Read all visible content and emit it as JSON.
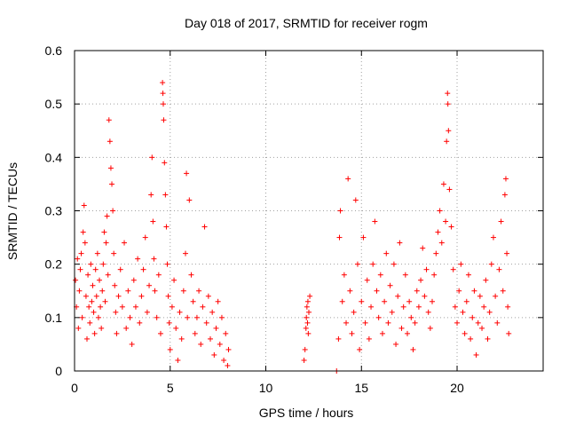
{
  "chart_data": {
    "type": "scatter",
    "title": "Day 018 of 2017, SRMTID for receiver rogm",
    "xlabel": "GPS time / hours",
    "ylabel": "SRMTID / TECUs",
    "xlim": [
      0,
      24.5
    ],
    "ylim": [
      0,
      0.6
    ],
    "xticks": [
      0,
      5,
      10,
      15,
      20
    ],
    "xtick_labels": [
      "0",
      "5",
      "10",
      "15",
      "20"
    ],
    "yticks": [
      0,
      0.1,
      0.2,
      0.3,
      0.4,
      0.5,
      0.6
    ],
    "ytick_labels": [
      "0",
      "0.1",
      "0.2",
      "0.3",
      "0.4",
      "0.5",
      "0.6"
    ],
    "grid": true,
    "marker": "+",
    "marker_color": "#ff0000",
    "series": [
      {
        "values_note": "",
        "points": [
          [
            0.05,
            0.17
          ],
          [
            0.1,
            0.12
          ],
          [
            0.15,
            0.21
          ],
          [
            0.2,
            0.08
          ],
          [
            0.25,
            0.15
          ],
          [
            0.3,
            0.19
          ],
          [
            0.35,
            0.22
          ],
          [
            0.4,
            0.1
          ],
          [
            0.45,
            0.26
          ],
          [
            0.5,
            0.31
          ],
          [
            0.55,
            0.24
          ],
          [
            0.6,
            0.14
          ],
          [
            0.65,
            0.06
          ],
          [
            0.7,
            0.18
          ],
          [
            0.75,
            0.12
          ],
          [
            0.8,
            0.09
          ],
          [
            0.85,
            0.2
          ],
          [
            0.9,
            0.13
          ],
          [
            0.95,
            0.16
          ],
          [
            1.0,
            0.11
          ],
          [
            1.05,
            0.07
          ],
          [
            1.1,
            0.19
          ],
          [
            1.15,
            0.14
          ],
          [
            1.2,
            0.22
          ],
          [
            1.25,
            0.1
          ],
          [
            1.3,
            0.17
          ],
          [
            1.35,
            0.12
          ],
          [
            1.4,
            0.08
          ],
          [
            1.45,
            0.15
          ],
          [
            1.5,
            0.2
          ],
          [
            1.55,
            0.26
          ],
          [
            1.6,
            0.13
          ],
          [
            1.65,
            0.24
          ],
          [
            1.7,
            0.29
          ],
          [
            1.75,
            0.18
          ],
          [
            1.8,
            0.47
          ],
          [
            1.85,
            0.43
          ],
          [
            1.9,
            0.38
          ],
          [
            1.95,
            0.35
          ],
          [
            2.0,
            0.3
          ],
          [
            2.05,
            0.22
          ],
          [
            2.1,
            0.16
          ],
          [
            2.15,
            0.11
          ],
          [
            2.2,
            0.07
          ],
          [
            2.3,
            0.14
          ],
          [
            2.4,
            0.19
          ],
          [
            2.5,
            0.12
          ],
          [
            2.6,
            0.24
          ],
          [
            2.7,
            0.08
          ],
          [
            2.8,
            0.15
          ],
          [
            2.9,
            0.1
          ],
          [
            3.0,
            0.05
          ],
          [
            3.1,
            0.17
          ],
          [
            3.2,
            0.12
          ],
          [
            3.3,
            0.21
          ],
          [
            3.4,
            0.09
          ],
          [
            3.5,
            0.14
          ],
          [
            3.6,
            0.19
          ],
          [
            3.7,
            0.25
          ],
          [
            3.8,
            0.11
          ],
          [
            3.9,
            0.16
          ],
          [
            4.0,
            0.33
          ],
          [
            4.05,
            0.4
          ],
          [
            4.1,
            0.28
          ],
          [
            4.15,
            0.21
          ],
          [
            4.2,
            0.15
          ],
          [
            4.3,
            0.1
          ],
          [
            4.4,
            0.18
          ],
          [
            4.5,
            0.07
          ],
          [
            4.6,
            0.54
          ],
          [
            4.62,
            0.52
          ],
          [
            4.64,
            0.5
          ],
          [
            4.66,
            0.47
          ],
          [
            4.7,
            0.39
          ],
          [
            4.75,
            0.33
          ],
          [
            4.8,
            0.27
          ],
          [
            4.85,
            0.2
          ],
          [
            4.9,
            0.14
          ],
          [
            4.95,
            0.09
          ],
          [
            5.0,
            0.04
          ],
          [
            5.1,
            0.12
          ],
          [
            5.2,
            0.17
          ],
          [
            5.3,
            0.08
          ],
          [
            5.4,
            0.02
          ],
          [
            5.5,
            0.11
          ],
          [
            5.6,
            0.06
          ],
          [
            5.7,
            0.15
          ],
          [
            5.8,
            0.22
          ],
          [
            5.85,
            0.37
          ],
          [
            5.9,
            0.1
          ],
          [
            6.0,
            0.32
          ],
          [
            6.1,
            0.18
          ],
          [
            6.2,
            0.13
          ],
          [
            6.3,
            0.07
          ],
          [
            6.4,
            0.1
          ],
          [
            6.5,
            0.15
          ],
          [
            6.6,
            0.05
          ],
          [
            6.7,
            0.12
          ],
          [
            6.8,
            0.27
          ],
          [
            6.9,
            0.09
          ],
          [
            7.0,
            0.14
          ],
          [
            7.1,
            0.06
          ],
          [
            7.2,
            0.11
          ],
          [
            7.3,
            0.03
          ],
          [
            7.4,
            0.08
          ],
          [
            7.5,
            0.13
          ],
          [
            7.6,
            0.05
          ],
          [
            7.7,
            0.1
          ],
          [
            7.8,
            0.02
          ],
          [
            7.9,
            0.07
          ],
          [
            8.0,
            0.01
          ],
          [
            8.05,
            0.04
          ],
          [
            12.0,
            0.02
          ],
          [
            12.05,
            0.04
          ],
          [
            12.1,
            0.08
          ],
          [
            12.12,
            0.1
          ],
          [
            12.15,
            0.12
          ],
          [
            12.18,
            0.09
          ],
          [
            12.2,
            0.13
          ],
          [
            12.22,
            0.07
          ],
          [
            12.25,
            0.11
          ],
          [
            12.3,
            0.14
          ],
          [
            13.7,
            0.0
          ],
          [
            13.8,
            0.06
          ],
          [
            13.85,
            0.25
          ],
          [
            13.9,
            0.3
          ],
          [
            14.0,
            0.13
          ],
          [
            14.1,
            0.18
          ],
          [
            14.2,
            0.09
          ],
          [
            14.3,
            0.36
          ],
          [
            14.4,
            0.15
          ],
          [
            14.5,
            0.07
          ],
          [
            14.6,
            0.11
          ],
          [
            14.7,
            0.32
          ],
          [
            14.8,
            0.2
          ],
          [
            14.9,
            0.04
          ],
          [
            15.0,
            0.13
          ],
          [
            15.1,
            0.25
          ],
          [
            15.2,
            0.09
          ],
          [
            15.3,
            0.17
          ],
          [
            15.4,
            0.06
          ],
          [
            15.5,
            0.12
          ],
          [
            15.6,
            0.2
          ],
          [
            15.7,
            0.28
          ],
          [
            15.8,
            0.15
          ],
          [
            15.9,
            0.1
          ],
          [
            16.0,
            0.18
          ],
          [
            16.1,
            0.07
          ],
          [
            16.2,
            0.13
          ],
          [
            16.3,
            0.22
          ],
          [
            16.4,
            0.09
          ],
          [
            16.5,
            0.16
          ],
          [
            16.6,
            0.11
          ],
          [
            16.7,
            0.2
          ],
          [
            16.8,
            0.05
          ],
          [
            16.9,
            0.14
          ],
          [
            17.0,
            0.24
          ],
          [
            17.1,
            0.08
          ],
          [
            17.2,
            0.12
          ],
          [
            17.3,
            0.18
          ],
          [
            17.4,
            0.07
          ],
          [
            17.5,
            0.13
          ],
          [
            17.6,
            0.1
          ],
          [
            17.7,
            0.04
          ],
          [
            17.8,
            0.09
          ],
          [
            17.9,
            0.15
          ],
          [
            18.0,
            0.12
          ],
          [
            18.1,
            0.17
          ],
          [
            18.2,
            0.23
          ],
          [
            18.3,
            0.14
          ],
          [
            18.4,
            0.19
          ],
          [
            18.5,
            0.11
          ],
          [
            18.6,
            0.08
          ],
          [
            18.7,
            0.13
          ],
          [
            18.8,
            0.18
          ],
          [
            18.9,
            0.22
          ],
          [
            19.0,
            0.26
          ],
          [
            19.1,
            0.3
          ],
          [
            19.2,
            0.24
          ],
          [
            19.3,
            0.35
          ],
          [
            19.4,
            0.28
          ],
          [
            19.45,
            0.43
          ],
          [
            19.5,
            0.52
          ],
          [
            19.52,
            0.5
          ],
          [
            19.55,
            0.45
          ],
          [
            19.6,
            0.34
          ],
          [
            19.7,
            0.27
          ],
          [
            19.8,
            0.19
          ],
          [
            19.9,
            0.12
          ],
          [
            20.0,
            0.09
          ],
          [
            20.1,
            0.15
          ],
          [
            20.2,
            0.2
          ],
          [
            20.3,
            0.11
          ],
          [
            20.4,
            0.07
          ],
          [
            20.5,
            0.13
          ],
          [
            20.6,
            0.18
          ],
          [
            20.7,
            0.06
          ],
          [
            20.8,
            0.1
          ],
          [
            20.9,
            0.15
          ],
          [
            21.0,
            0.03
          ],
          [
            21.1,
            0.09
          ],
          [
            21.2,
            0.14
          ],
          [
            21.3,
            0.08
          ],
          [
            21.4,
            0.12
          ],
          [
            21.5,
            0.17
          ],
          [
            21.6,
            0.06
          ],
          [
            21.7,
            0.11
          ],
          [
            21.8,
            0.2
          ],
          [
            21.9,
            0.25
          ],
          [
            22.0,
            0.14
          ],
          [
            22.1,
            0.09
          ],
          [
            22.2,
            0.19
          ],
          [
            22.3,
            0.28
          ],
          [
            22.4,
            0.15
          ],
          [
            22.5,
            0.33
          ],
          [
            22.55,
            0.36
          ],
          [
            22.6,
            0.22
          ],
          [
            22.65,
            0.12
          ],
          [
            22.7,
            0.07
          ]
        ]
      }
    ]
  }
}
